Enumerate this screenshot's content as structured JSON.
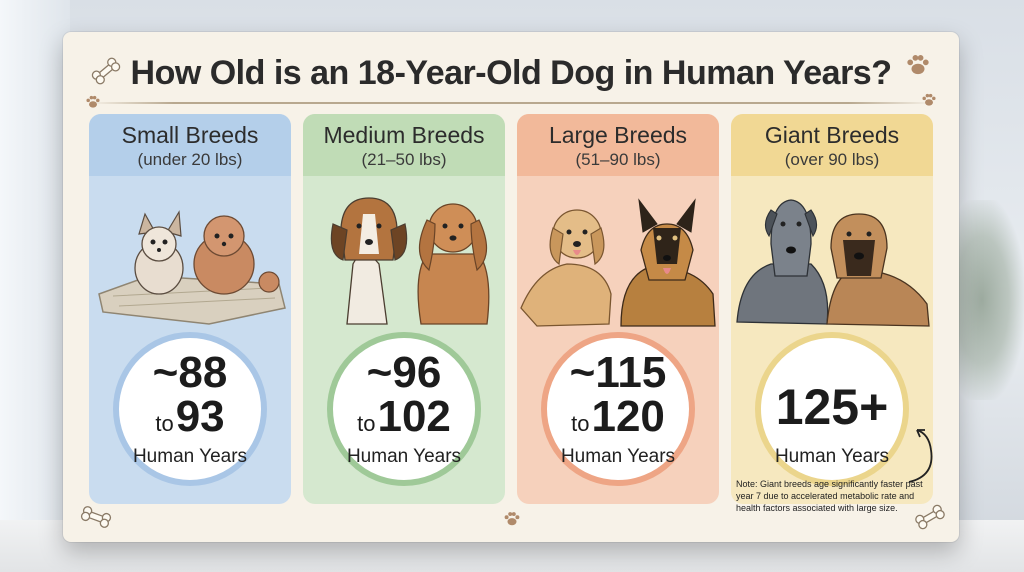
{
  "title": "How Old is an 18-Year-Old Dog in Human Years?",
  "colors": {
    "small": "#c9dcef",
    "small_head": "#b4cfea",
    "small_ring": "#a9c6e6",
    "medium": "#d5e8cf",
    "medium_head": "#c0dcb6",
    "medium_ring": "#9fc998",
    "large": "#f6d1bc",
    "large_head": "#f2b99a",
    "large_ring": "#eea585",
    "giant": "#f6e8bf",
    "giant_head": "#f1d894",
    "giant_ring": "#ebd58c"
  },
  "breeds": [
    {
      "title": "Small Breeds",
      "sub": "(under 20 lbs)",
      "top": "~88",
      "to": "to",
      "bottom": "93",
      "unit": "Human Years"
    },
    {
      "title": "Medium Breeds",
      "sub": "(21–50 lbs)",
      "top": "~96",
      "to": "to",
      "bottom": "102",
      "unit": "Human Years"
    },
    {
      "title": "Large Breeds",
      "sub": "(51–90 lbs)",
      "top": "~115",
      "to": "to",
      "bottom": "120",
      "unit": "Human Years"
    },
    {
      "title": "Giant Breeds",
      "sub": "(over 90 lbs)",
      "value": "125+",
      "unit": "Human Years"
    }
  ],
  "note": "Note: Giant breeds age significantly faster past year 7 due to accelerated metabolic rate and health factors associated with large size.",
  "icons": [
    "bone-icon",
    "paw-icon"
  ]
}
